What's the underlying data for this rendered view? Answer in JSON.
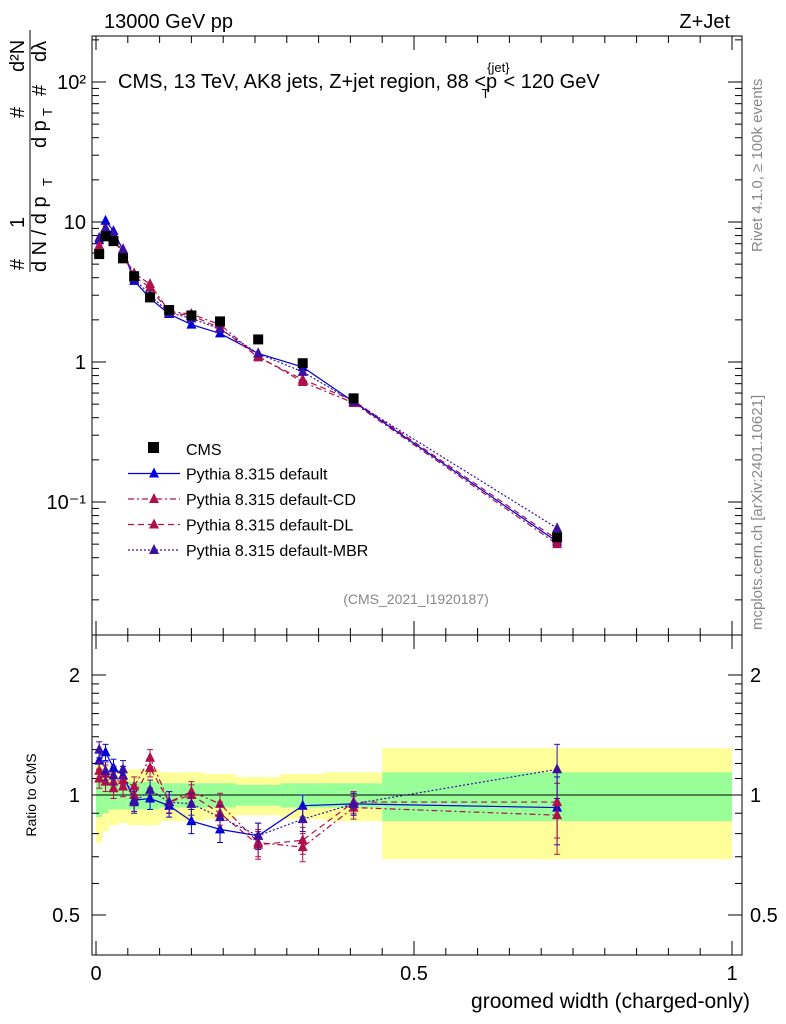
{
  "header": {
    "left": "13000 GeV pp",
    "right": "Z+Jet"
  },
  "side_labels": {
    "rivet": "Rivet 4.1.0, ≥ 100k events",
    "mcplots": "mcplots.cern.ch [arXiv:2401.10621]"
  },
  "chart_data": {
    "type": "scatter",
    "title": "CMS, 13 TeV, AK8 jets, Z+jet region, 88 <p_T^{jet}< 120 GeV",
    "title_text": {
      "prefix": "CMS, 13 TeV, AK8 jets, Z+jet region, 88 <p",
      "sup": "{jet}",
      "sub": "T",
      "suffix": "< 120 GeV"
    },
    "analysis_tag": "(CMS_2021_I1920187)",
    "xlabel": "groomed width (charged-only)",
    "ylabel_main": "1/dN/dp_T # d²N/dp_T#dλ",
    "ylabel_ratio": "Ratio to CMS",
    "xlim": [
      0,
      1
    ],
    "ylim_main": [
      0.015,
      200
    ],
    "ylim_ratio": [
      0.4,
      2.4
    ],
    "x_ticks": [
      "0",
      "0.5",
      "1"
    ],
    "y_ticks_main": [
      "10⁻¹",
      "1",
      "10",
      "10²"
    ],
    "y_ticks_ratio": [
      "0.5",
      "1",
      "2"
    ],
    "bins": [
      [
        0.0,
        0.01
      ],
      [
        0.01,
        0.02
      ],
      [
        0.02,
        0.035
      ],
      [
        0.035,
        0.05
      ],
      [
        0.05,
        0.07
      ],
      [
        0.07,
        0.1
      ],
      [
        0.1,
        0.13
      ],
      [
        0.13,
        0.17
      ],
      [
        0.17,
        0.22
      ],
      [
        0.22,
        0.29
      ],
      [
        0.29,
        0.36
      ],
      [
        0.36,
        0.45
      ],
      [
        0.45,
        1.0
      ]
    ],
    "x": [
      0.005,
      0.015,
      0.0275,
      0.0425,
      0.06,
      0.085,
      0.115,
      0.15,
      0.195,
      0.255,
      0.325,
      0.405,
      0.725
    ],
    "cms": {
      "name": "CMS",
      "values": [
        5.9,
        7.9,
        7.3,
        5.5,
        4.1,
        2.9,
        2.35,
        2.15,
        1.95,
        1.45,
        0.98,
        0.55,
        0.056
      ]
    },
    "bands": {
      "green": [
        0.12,
        0.1,
        0.08,
        0.08,
        0.08,
        0.08,
        0.07,
        0.07,
        0.07,
        0.06,
        0.07,
        0.07,
        0.14
      ],
      "yellow": [
        0.24,
        0.19,
        0.16,
        0.15,
        0.16,
        0.16,
        0.14,
        0.14,
        0.13,
        0.11,
        0.13,
        0.14,
        0.31
      ]
    },
    "series": [
      {
        "name": "Pythia 8.315 default",
        "color": "#0000dd",
        "dash": "none",
        "values": [
          7.4,
          10.2,
          8.6,
          6.3,
          3.8,
          2.85,
          2.2,
          1.85,
          1.6,
          1.15,
          0.92,
          0.52,
          0.052
        ],
        "ratio": [
          1.22,
          1.28,
          1.17,
          1.12,
          0.97,
          0.98,
          0.94,
          0.86,
          0.82,
          0.79,
          0.94,
          0.95,
          0.93
        ]
      },
      {
        "name": "Pythia 8.315 default-CD",
        "color": "#b0104a",
        "dash": "6,3,2,3",
        "values": [
          6.5,
          8.9,
          7.9,
          6.0,
          4.3,
          3.6,
          2.3,
          2.2,
          1.85,
          1.1,
          0.72,
          0.51,
          0.05
        ],
        "ratio": [
          1.1,
          1.13,
          1.08,
          1.09,
          1.05,
          1.24,
          0.96,
          1.02,
          0.95,
          0.76,
          0.74,
          0.93,
          0.89
        ]
      },
      {
        "name": "Pythia 8.315 default-DL",
        "color": "#b0104a",
        "dash": "6,4",
        "values": [
          6.8,
          8.5,
          7.6,
          5.8,
          4.1,
          3.4,
          2.25,
          2.15,
          1.75,
          1.08,
          0.75,
          0.53,
          0.054
        ],
        "ratio": [
          1.15,
          1.08,
          1.04,
          1.05,
          1.0,
          1.17,
          0.96,
          1.0,
          0.9,
          0.75,
          0.77,
          0.96,
          0.96
        ]
      },
      {
        "name": "Pythia 8.315 default-MBR",
        "color": "#3a10a0",
        "dash": "2,2",
        "values": [
          7.7,
          9.1,
          8.2,
          6.4,
          3.95,
          3.0,
          2.25,
          2.05,
          1.72,
          1.15,
          0.85,
          0.52,
          0.065
        ],
        "ratio": [
          1.3,
          1.15,
          1.12,
          1.16,
          0.96,
          1.03,
          0.96,
          0.95,
          0.88,
          0.79,
          0.87,
          0.95,
          1.16
        ]
      }
    ],
    "legend_position": "lower-left"
  }
}
